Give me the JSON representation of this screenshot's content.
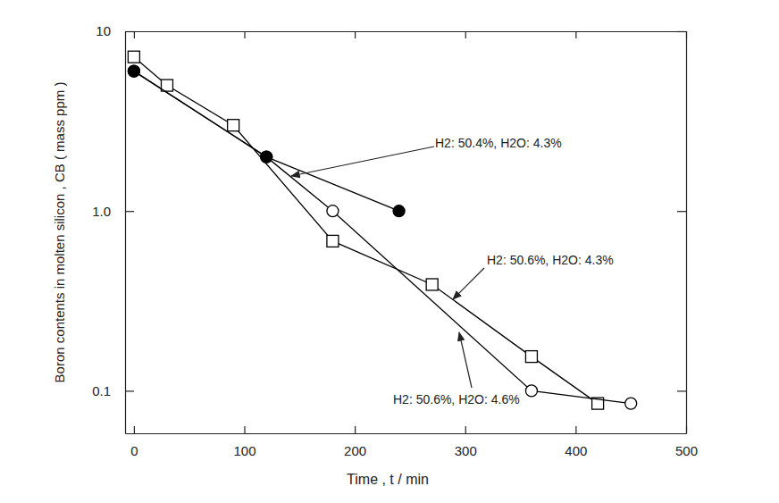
{
  "chart_data": {
    "type": "line",
    "x_label": "Time , t / min",
    "y_label": "Boron contents in molten silicon , CB ( mass ppm )",
    "log": "y",
    "grid": false,
    "xlim": [
      -8,
      500
    ],
    "xticks": [
      0,
      100,
      200,
      300,
      400,
      500
    ],
    "ylim": [
      0.058,
      10
    ],
    "yticks": [
      0.1,
      {
        "value": 1,
        "label": "1.0"
      },
      10
    ],
    "series": [
      {
        "name": "H2: 50.4%, H2O: 4.3%",
        "color": "#000000",
        "marker": "circle-filled",
        "line_style": "solid",
        "x": [
          0,
          120,
          240
        ],
        "values": [
          6.0,
          2.0,
          1.0
        ]
      },
      {
        "name": "H2: 50.6%, H2O: 4.3%",
        "color": "#000000",
        "marker": "square",
        "line_style": "solid",
        "x": [
          0,
          30,
          90,
          180,
          270,
          360,
          420
        ],
        "values": [
          7.2,
          5.0,
          3.0,
          0.68,
          0.39,
          0.155,
          0.085
        ]
      },
      {
        "name": "H2: 50.6%, H2O: 4.6%",
        "color": "#000000",
        "marker": "circle-open",
        "line_style": "solid",
        "x": [
          0,
          120,
          180,
          360,
          450
        ],
        "values": [
          6.0,
          2.0,
          1.0,
          0.1,
          0.085
        ]
      }
    ]
  }
}
